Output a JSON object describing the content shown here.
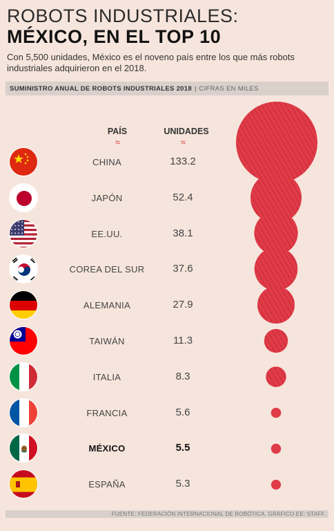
{
  "header": {
    "title_line1": "ROBOTS INDUSTRIALES:",
    "title_line2": "MÉXICO, EN EL TOP 10",
    "subtitle": "Con 5,500 unidades, México es el noveno país entre los que más robots industriales adquirieron en el 2018."
  },
  "subheader": {
    "bold": "SUMINISTRO ANUAL DE ROBOTS INDUSTRIALES 2018",
    "separator": "|",
    "light": "CIFRAS EN MILES"
  },
  "columns": {
    "country": "PAÍS",
    "units": "UNIDADES",
    "chevron": "≈"
  },
  "colors": {
    "accent": "#d83a45",
    "bubble": "#e03b48",
    "background": "#f6e5dc"
  },
  "chart_data": {
    "type": "table",
    "title": "ROBOTS INDUSTRIALES: MÉXICO, EN EL TOP 10",
    "categories": [
      "CHINA",
      "JAPÓN",
      "EE.UU.",
      "COREA DEL SUR",
      "ALEMANIA",
      "TAIWÁN",
      "ITALIA",
      "FRANCIA",
      "MÉXICO",
      "ESPAÑA"
    ],
    "series": [
      {
        "name": "UNIDADES",
        "values": [
          133.2,
          52.4,
          38.1,
          37.6,
          27.9,
          11.3,
          8.3,
          5.6,
          5.5,
          5.3
        ],
        "labels": [
          "133.2",
          "52.4",
          "38.1",
          "37.6",
          "27.9",
          "11.3",
          "8.3",
          "5.6",
          "5.5",
          "5.3"
        ]
      }
    ],
    "flags": [
      "china-flag-icon",
      "japan-flag-icon",
      "usa-flag-icon",
      "south-korea-flag-icon",
      "germany-flag-icon",
      "taiwan-flag-icon",
      "italy-flag-icon",
      "france-flag-icon",
      "mexico-flag-icon",
      "spain-flag-icon"
    ],
    "highlight": "MÉXICO"
  },
  "footer": {
    "source": "FUENTE: FEDERACIÓN INTERNACIONAL DE ROBÓTICA. GRÁFICO EE: STAFF."
  }
}
